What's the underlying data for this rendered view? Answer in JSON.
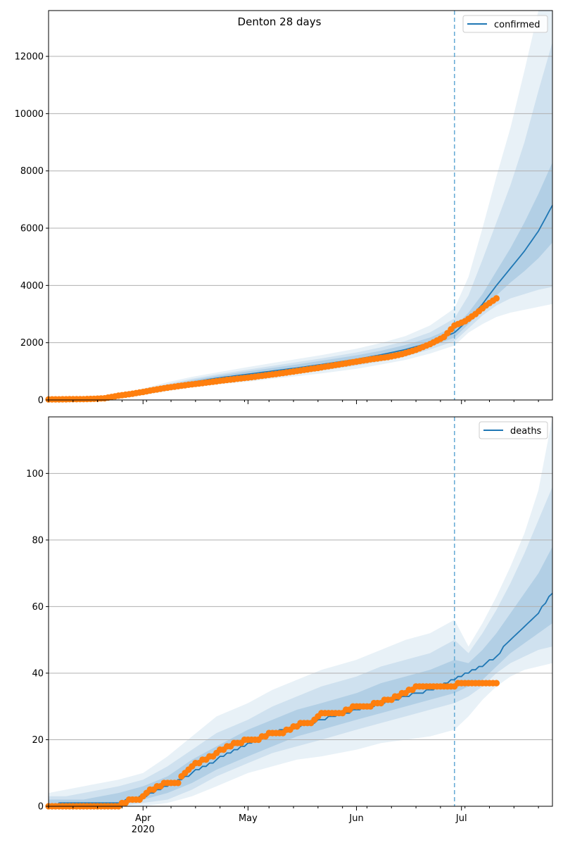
{
  "figure": {
    "title": "Denton 28 days",
    "colors": {
      "model": "#1f77b4",
      "observed": "#ff7f0e",
      "band": "#1f77b4",
      "grid": "#b0b0b0",
      "cutoff": "#6baed6"
    }
  },
  "chart_data": [
    {
      "type": "line",
      "legend": "confirmed",
      "legend_position": "top-right",
      "grid": "horizontal",
      "x_range": [
        "2020-03-05",
        "2020-07-27"
      ],
      "forecast_start": "2020-06-29",
      "ylim": [
        0,
        13600
      ],
      "yticks": [
        0,
        2000,
        4000,
        6000,
        8000,
        10000,
        12000
      ],
      "model_median": {
        "x": [
          "2020-03-05",
          "2020-03-15",
          "2020-03-25",
          "2020-04-01",
          "2020-04-08",
          "2020-04-15",
          "2020-04-22",
          "2020-05-01",
          "2020-05-08",
          "2020-05-15",
          "2020-05-22",
          "2020-06-01",
          "2020-06-08",
          "2020-06-15",
          "2020-06-22",
          "2020-06-29",
          "2020-07-03",
          "2020-07-07",
          "2020-07-11",
          "2020-07-15",
          "2020-07-19",
          "2020-07-23",
          "2020-07-27"
        ],
        "y": [
          0,
          20,
          80,
          270,
          460,
          620,
          760,
          900,
          1010,
          1120,
          1240,
          1420,
          1580,
          1760,
          2000,
          2350,
          2800,
          3350,
          4000,
          4600,
          5200,
          5900,
          6800
        ]
      },
      "bands": [
        {
          "level": "outer",
          "lower": [
            0,
            10,
            40,
            170,
            310,
            440,
            540,
            640,
            740,
            830,
            930,
            1090,
            1240,
            1400,
            1620,
            1900,
            2350,
            2650,
            2900,
            3050,
            3150,
            3250,
            3350
          ],
          "upper": [
            0,
            35,
            140,
            400,
            620,
            810,
            960,
            1150,
            1290,
            1430,
            1570,
            1790,
            1990,
            2230,
            2600,
            3200,
            4300,
            6000,
            7800,
            9500,
            11500,
            13600,
            13600
          ]
        },
        {
          "level": "middle",
          "lower": [
            0,
            13,
            55,
            200,
            360,
            500,
            610,
            720,
            820,
            920,
            1030,
            1200,
            1350,
            1520,
            1760,
            2050,
            2500,
            2950,
            3300,
            3550,
            3700,
            3850,
            3950
          ],
          "upper": [
            0,
            30,
            115,
            350,
            560,
            740,
            890,
            1060,
            1190,
            1320,
            1450,
            1660,
            1840,
            2060,
            2360,
            2850,
            3650,
            4900,
            6200,
            7500,
            9000,
            10800,
            12500
          ]
        },
        {
          "level": "inner",
          "lower": [
            0,
            16,
            65,
            230,
            400,
            550,
            670,
            790,
            890,
            990,
            1110,
            1280,
            1440,
            1620,
            1860,
            2180,
            2650,
            3150,
            3650,
            4100,
            4500,
            4950,
            5500
          ],
          "upper": [
            0,
            25,
            100,
            320,
            520,
            690,
            840,
            1000,
            1120,
            1240,
            1370,
            1560,
            1720,
            1920,
            2180,
            2550,
            3050,
            3700,
            4500,
            5300,
            6200,
            7200,
            8300
          ]
        }
      ],
      "observed": {
        "name": "observed",
        "x": [
          "2020-03-05",
          "2020-03-10",
          "2020-03-15",
          "2020-03-18",
          "2020-03-21",
          "2020-03-25",
          "2020-03-28",
          "2020-04-01",
          "2020-04-04",
          "2020-04-08",
          "2020-04-12",
          "2020-04-16",
          "2020-04-20",
          "2020-04-25",
          "2020-05-01",
          "2020-05-06",
          "2020-05-11",
          "2020-05-16",
          "2020-05-21",
          "2020-05-26",
          "2020-06-01",
          "2020-06-05",
          "2020-06-10",
          "2020-06-14",
          "2020-06-18",
          "2020-06-22",
          "2020-06-26",
          "2020-06-29",
          "2020-07-02",
          "2020-07-05",
          "2020-07-08",
          "2020-07-11"
        ],
        "y": [
          20,
          25,
          30,
          40,
          60,
          150,
          200,
          280,
          350,
          430,
          500,
          560,
          620,
          700,
          780,
          860,
          940,
          1030,
          1120,
          1220,
          1340,
          1420,
          1500,
          1600,
          1750,
          1950,
          2200,
          2600,
          2750,
          3000,
          3300,
          3550
        ]
      }
    },
    {
      "type": "line",
      "legend": "deaths",
      "legend_position": "top-right",
      "grid": "horizontal",
      "x_range": [
        "2020-03-05",
        "2020-07-27"
      ],
      "forecast_start": "2020-06-29",
      "ylim": [
        0,
        117
      ],
      "yticks": [
        0,
        20,
        40,
        60,
        80,
        100
      ],
      "xticks": [
        {
          "date": "2020-04-01",
          "label": "Apr",
          "sublabel": "2020"
        },
        {
          "date": "2020-05-01",
          "label": "May"
        },
        {
          "date": "2020-06-01",
          "label": "Jun"
        },
        {
          "date": "2020-07-01",
          "label": "Jul"
        }
      ],
      "model_median": {
        "x": [
          "2020-03-05",
          "2020-03-10",
          "2020-03-15",
          "2020-03-20",
          "2020-03-25",
          "2020-04-01",
          "2020-04-08",
          "2020-04-15",
          "2020-04-22",
          "2020-05-01",
          "2020-05-08",
          "2020-05-15",
          "2020-05-22",
          "2020-06-01",
          "2020-06-08",
          "2020-06-15",
          "2020-06-22",
          "2020-06-29",
          "2020-07-03",
          "2020-07-07",
          "2020-07-11",
          "2020-07-15",
          "2020-07-19",
          "2020-07-23",
          "2020-07-27"
        ],
        "y": [
          0,
          1,
          1,
          1,
          1,
          3,
          6,
          10,
          14,
          19,
          22,
          24,
          26,
          29,
          31,
          33,
          35,
          38,
          40,
          42,
          45,
          50,
          54,
          58,
          64
        ]
      },
      "bands": [
        {
          "level": "outer",
          "lower": [
            0,
            0,
            0,
            0,
            0,
            0,
            1,
            3,
            6,
            10,
            12,
            14,
            15,
            17,
            19,
            20,
            21,
            23,
            27,
            32,
            36,
            39,
            41,
            42,
            43
          ],
          "upper": [
            4,
            5,
            6,
            7,
            8,
            10,
            15,
            21,
            27,
            31,
            35,
            38,
            41,
            44,
            47,
            50,
            52,
            56,
            48,
            55,
            63,
            72,
            82,
            95,
            117
          ]
        },
        {
          "level": "middle",
          "lower": [
            0,
            0,
            0,
            0,
            0,
            1,
            2,
            5,
            9,
            13,
            16,
            18,
            20,
            23,
            25,
            27,
            29,
            31,
            33,
            36,
            40,
            43,
            45,
            47,
            48
          ],
          "upper": [
            3,
            3,
            4,
            5,
            6,
            8,
            12,
            17,
            22,
            26,
            30,
            33,
            36,
            39,
            42,
            44,
            46,
            50,
            46,
            52,
            59,
            67,
            76,
            86,
            96
          ]
        },
        {
          "level": "inner",
          "lower": [
            0,
            0,
            1,
            1,
            1,
            2,
            4,
            7,
            11,
            15,
            18,
            21,
            23,
            26,
            28,
            30,
            32,
            34,
            36,
            38,
            42,
            46,
            49,
            52,
            55
          ],
          "upper": [
            2,
            2,
            2,
            3,
            4,
            6,
            9,
            14,
            18,
            23,
            26,
            29,
            31,
            34,
            37,
            39,
            41,
            44,
            43,
            47,
            52,
            58,
            64,
            70,
            78
          ]
        }
      ],
      "observed": {
        "name": "observed",
        "x": [
          "2020-03-05",
          "2020-03-10",
          "2020-03-15",
          "2020-03-20",
          "2020-03-25",
          "2020-03-28",
          "2020-03-31",
          "2020-04-02",
          "2020-04-05",
          "2020-04-08",
          "2020-04-11",
          "2020-04-13",
          "2020-04-16",
          "2020-04-19",
          "2020-04-22",
          "2020-04-25",
          "2020-04-28",
          "2020-05-01",
          "2020-05-04",
          "2020-05-07",
          "2020-05-10",
          "2020-05-13",
          "2020-05-16",
          "2020-05-19",
          "2020-05-22",
          "2020-05-25",
          "2020-05-28",
          "2020-06-01",
          "2020-06-04",
          "2020-06-07",
          "2020-06-10",
          "2020-06-13",
          "2020-06-16",
          "2020-06-19",
          "2020-06-22",
          "2020-06-25",
          "2020-06-28",
          "2020-07-01",
          "2020-07-05",
          "2020-07-11"
        ],
        "y": [
          0,
          0,
          0,
          0,
          0,
          2,
          2,
          4,
          6,
          7,
          7,
          10,
          13,
          14,
          16,
          18,
          19,
          20,
          20,
          22,
          22,
          23,
          25,
          25,
          28,
          28,
          28,
          30,
          30,
          31,
          32,
          33,
          35,
          36,
          36,
          36,
          36,
          37,
          37,
          37
        ]
      }
    }
  ]
}
